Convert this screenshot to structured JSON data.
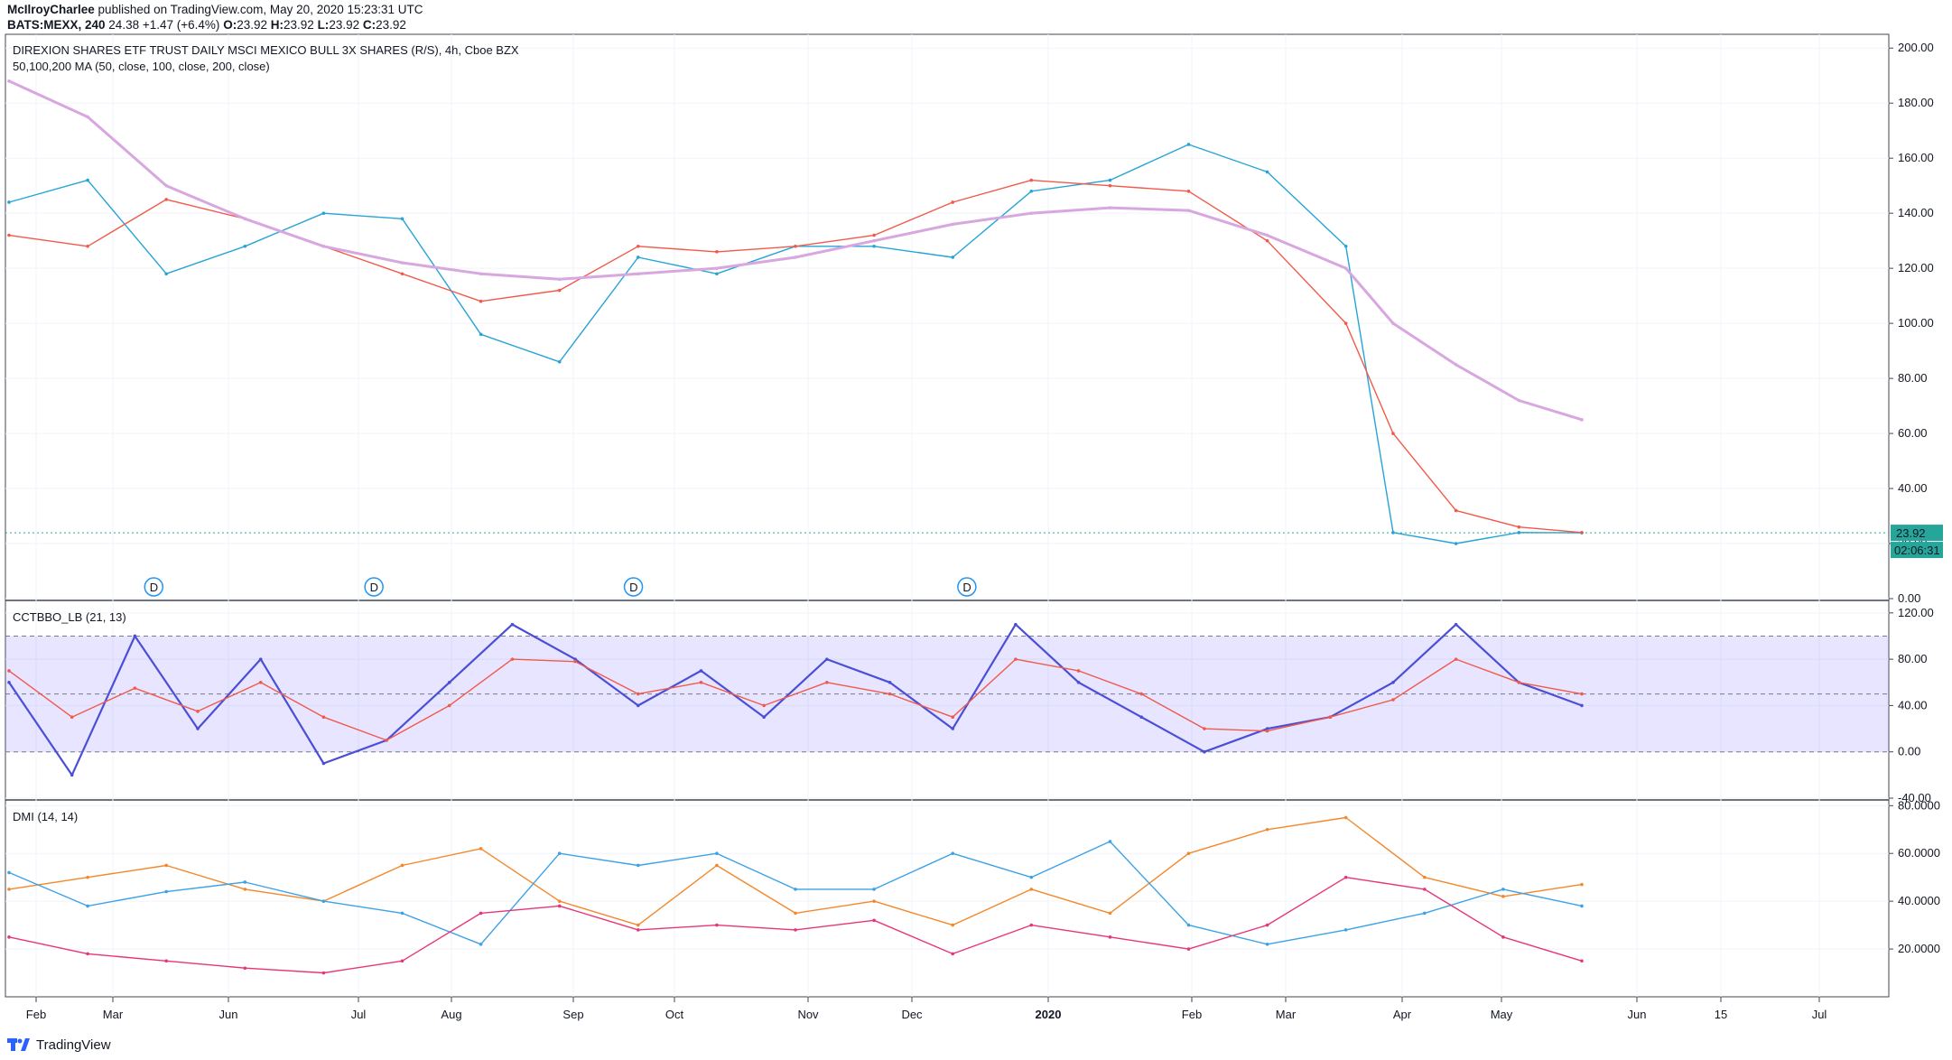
{
  "header": {
    "publisher": "McIlroyCharlee",
    "published_text": " published on TradingView.com, May 20, 2020 15:23:31 UTC",
    "symbol": "BATS:MEXX, 240",
    "price": "24.38",
    "change": "+1.47 (+6.4%)",
    "open_label": "O:",
    "open": "23.92",
    "high_label": "H:",
    "high": "23.92",
    "low_label": "L:",
    "low": "23.92",
    "close_label": "C:",
    "close": "23.92"
  },
  "branding": {
    "text": "TradingView",
    "icon": "tradingview-logo-icon"
  },
  "chart_data": [
    {
      "type": "line",
      "title": "DIREXION SHARES ETF TRUST DAILY MSCI MEXICO BULL 3X SHARES (R/S), 4h, Cboe BZX",
      "subtitle": "50,100,200 MA (50, close, 100, close, 200, close)",
      "ylim": [
        0,
        205
      ],
      "y_ticks": [
        "200.00",
        "180.00",
        "160.00",
        "140.00",
        "120.00",
        "100.00",
        "80.00",
        "60.00",
        "40.00",
        "20.00",
        "0.00"
      ],
      "y_tick_values": [
        200,
        180,
        160,
        140,
        120,
        100,
        80,
        60,
        40,
        20,
        0
      ],
      "x_ticks": [
        "Feb",
        "Mar",
        "Jun",
        "Jul",
        "Aug",
        "Sep",
        "Oct",
        "Nov",
        "Dec",
        "2020",
        "Feb",
        "Mar",
        "Apr",
        "May",
        "Jun",
        "15",
        "Jul"
      ],
      "last_price_label": "23.92",
      "last_price": 23.92,
      "countdown_label": "02:06:31",
      "dividend_marker": "D",
      "dividend_marker_positions": [
        0.092,
        0.232,
        0.397,
        0.609
      ],
      "x": [
        0.0,
        0.05,
        0.1,
        0.15,
        0.2,
        0.25,
        0.3,
        0.35,
        0.4,
        0.45,
        0.5,
        0.55,
        0.6,
        0.65,
        0.7,
        0.75,
        0.8,
        0.85,
        0.88,
        0.92,
        0.96,
        1.0
      ],
      "series": [
        {
          "name": "",
          "color": "#26a4d6",
          "values": [
            144,
            152,
            118,
            128,
            140,
            138,
            96,
            86,
            124,
            118,
            128,
            128,
            124,
            148,
            152,
            165,
            155,
            128,
            24,
            20,
            24,
            23.92
          ]
        },
        {
          "name": "",
          "color": "#f15a4a",
          "values": [
            132,
            128,
            145,
            138,
            128,
            118,
            108,
            112,
            128,
            126,
            128,
            132,
            144,
            152,
            150,
            148,
            130,
            100,
            60,
            32,
            26,
            24
          ]
        },
        {
          "name": "",
          "color": "#d8a7e0",
          "values": [
            188,
            175,
            150,
            138,
            128,
            122,
            118,
            116,
            118,
            120,
            124,
            130,
            136,
            140,
            142,
            141,
            132,
            120,
            100,
            85,
            72,
            65
          ]
        }
      ]
    },
    {
      "type": "line",
      "title": "CCTBBO_LB (21, 13)",
      "ylim": [
        -40,
        130
      ],
      "y_ticks": [
        "120.00",
        "80.00",
        "40.00",
        "0.00",
        "-40.00"
      ],
      "y_tick_values": [
        120,
        80,
        40,
        0,
        -40
      ],
      "band": [
        0,
        100
      ],
      "dashed_levels": [
        100,
        50,
        0
      ],
      "x": [
        0.0,
        0.04,
        0.08,
        0.12,
        0.16,
        0.2,
        0.24,
        0.28,
        0.32,
        0.36,
        0.4,
        0.44,
        0.48,
        0.52,
        0.56,
        0.6,
        0.64,
        0.68,
        0.72,
        0.76,
        0.8,
        0.84,
        0.88,
        0.92,
        0.96,
        1.0
      ],
      "series": [
        {
          "name": "",
          "color": "#4a4fd6",
          "values": [
            60,
            -20,
            100,
            20,
            80,
            -10,
            10,
            60,
            110,
            80,
            40,
            70,
            30,
            80,
            60,
            20,
            110,
            60,
            30,
            0,
            20,
            30,
            60,
            110,
            60,
            40
          ]
        },
        {
          "name": "",
          "color": "#f15a4a",
          "values": [
            70,
            30,
            55,
            35,
            60,
            30,
            10,
            40,
            80,
            78,
            50,
            60,
            40,
            60,
            50,
            30,
            80,
            70,
            50,
            20,
            18,
            30,
            45,
            80,
            60,
            50
          ]
        }
      ]
    },
    {
      "type": "line",
      "title": "DMI (14, 14)",
      "ylim": [
        0,
        82
      ],
      "y_ticks": [
        "80.0000",
        "60.0000",
        "40.0000",
        "20.0000"
      ],
      "y_tick_values": [
        80,
        60,
        40,
        20
      ],
      "x": [
        0.0,
        0.05,
        0.1,
        0.15,
        0.2,
        0.25,
        0.3,
        0.35,
        0.4,
        0.45,
        0.5,
        0.55,
        0.6,
        0.65,
        0.7,
        0.75,
        0.8,
        0.85,
        0.9,
        0.95,
        1.0
      ],
      "series": [
        {
          "name": "",
          "color": "#f3882b",
          "values": [
            45,
            50,
            55,
            45,
            40,
            55,
            62,
            40,
            30,
            55,
            35,
            40,
            30,
            45,
            35,
            60,
            70,
            75,
            50,
            42,
            47
          ]
        },
        {
          "name": "",
          "color": "#3ba2e8",
          "values": [
            52,
            38,
            44,
            48,
            40,
            35,
            22,
            60,
            55,
            60,
            45,
            45,
            60,
            50,
            65,
            30,
            22,
            28,
            35,
            45,
            38
          ]
        },
        {
          "name": "",
          "color": "#e8357a",
          "values": [
            25,
            18,
            15,
            12,
            10,
            15,
            35,
            38,
            28,
            30,
            28,
            32,
            18,
            30,
            25,
            20,
            30,
            50,
            45,
            25,
            15
          ]
        }
      ]
    }
  ]
}
